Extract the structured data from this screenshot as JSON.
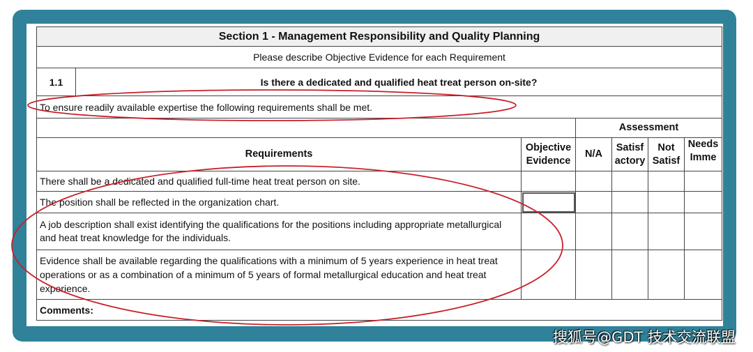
{
  "section_title": "Section 1 - Management Responsibility and Quality Planning",
  "instruction": "Please describe Objective Evidence for each Requirement",
  "question": {
    "number": "1.1",
    "text": "Is there a dedicated and qualified heat treat person on-site?"
  },
  "intro": "To ensure readily available expertise the following requirements shall be met.",
  "headers": {
    "assessment": "Assessment",
    "requirements": "Requirements",
    "objective_evidence": "Objective Evidence",
    "na": "N/A",
    "satisfactory": "Satisf actory",
    "not_satisfactory": "Not Satisf",
    "needs_immediate": "Needs Imme"
  },
  "requirements": [
    "There shall be a dedicated and qualified full-time heat treat person on site.",
    "The position shall be reflected in the organization chart.",
    "A job description shall exist identifying the qualifications for the positions including appropriate metallurgical and heat treat knowledge for the individuals.",
    "Evidence shall be available regarding the qualifications with a minimum of 5 years experience in heat treat operations or as a combination of a minimum of 5 years of formal metallurgical education and heat treat experience."
  ],
  "comments_label": "Comments:",
  "watermark": "搜狐号@GDT 技术交流联盟",
  "colors": {
    "frame": "#2f8299",
    "annotation": "#c8202a"
  }
}
